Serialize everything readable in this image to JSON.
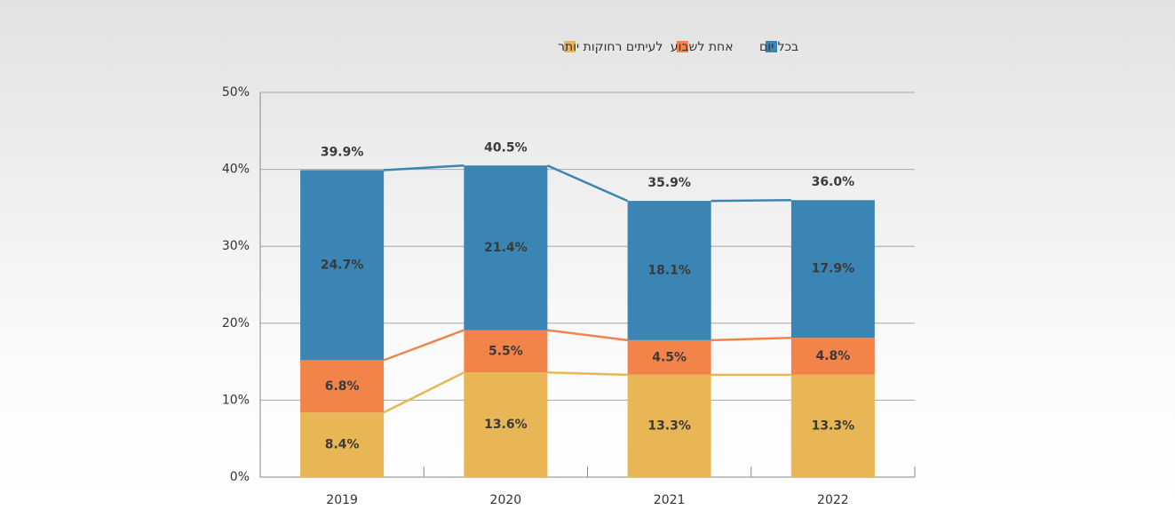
{
  "chart_data": {
    "type": "stacked_bar",
    "categories": [
      "2019",
      "2020",
      "2021",
      "2022"
    ],
    "series": [
      {
        "name": "לעיתים רחוקות יותר",
        "color": "#e8b654",
        "values": [
          8.4,
          13.6,
          13.3,
          13.3
        ],
        "value_labels": [
          "8.4%",
          "13.6%",
          "13.3%",
          "13.3%"
        ]
      },
      {
        "name": "אחת לשבוע",
        "color": "#f2844a",
        "values": [
          6.8,
          5.5,
          4.5,
          4.8
        ],
        "value_labels": [
          "6.8%",
          "5.5%",
          "4.5%",
          "4.8%"
        ]
      },
      {
        "name": "בכל יום",
        "color": "#3a85b4",
        "values": [
          24.7,
          21.4,
          18.1,
          17.9
        ],
        "value_labels": [
          "24.7%",
          "21.4%",
          "18.1%",
          "17.9%"
        ]
      }
    ],
    "totals": [
      39.9,
      40.5,
      35.9,
      36.0
    ],
    "total_labels": [
      "39.9%",
      "40.5%",
      "35.9%",
      "36.0%"
    ],
    "ylim": [
      0,
      50
    ],
    "yticks": [
      {
        "value": 0,
        "label": "0%"
      },
      {
        "value": 10,
        "label": "10%"
      },
      {
        "value": 20,
        "label": "20%"
      },
      {
        "value": 30,
        "label": "30%"
      },
      {
        "value": 40,
        "label": "40%"
      },
      {
        "value": 50,
        "label": "50%"
      }
    ],
    "grid": true
  }
}
